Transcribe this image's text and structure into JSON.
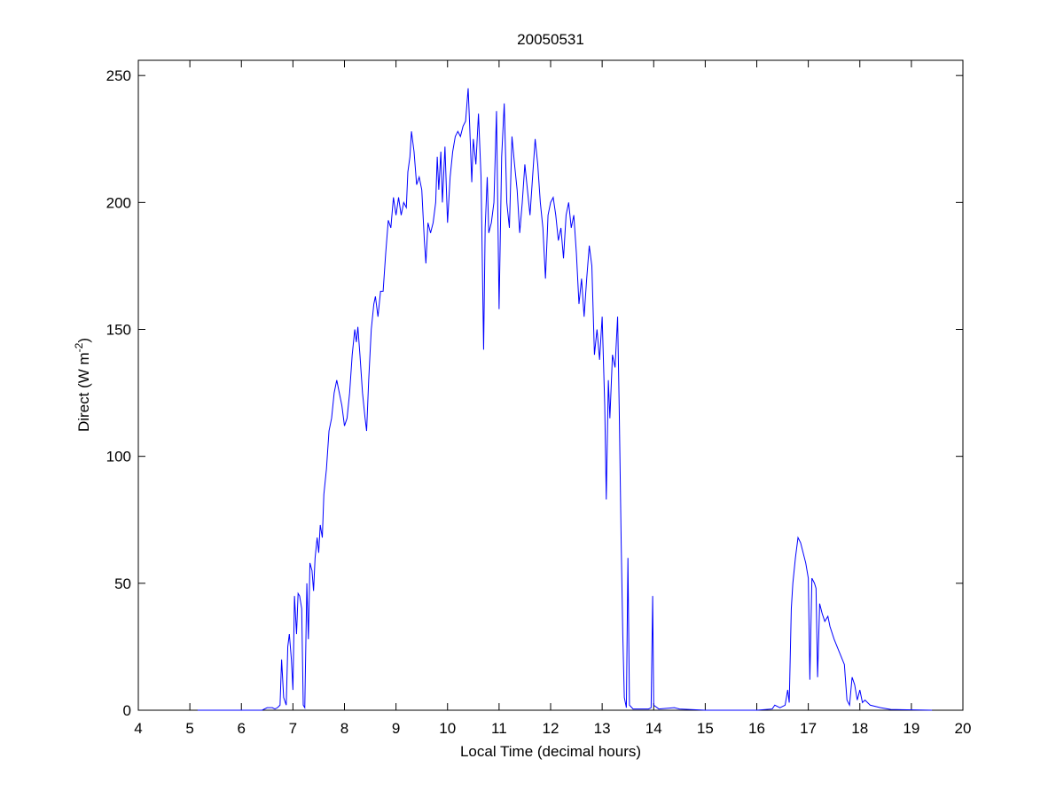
{
  "chart_data": {
    "type": "line",
    "title": "20050531",
    "x_label": "Local Time (decimal hours)",
    "y_label_parts": [
      "Direct (W m",
      "-2",
      ")"
    ],
    "xlim": [
      4,
      20
    ],
    "ylim": [
      0,
      256
    ],
    "xticks": [
      4,
      5,
      6,
      7,
      8,
      9,
      10,
      11,
      12,
      13,
      14,
      15,
      16,
      17,
      18,
      19,
      20
    ],
    "yticks": [
      0,
      50,
      100,
      150,
      200,
      250
    ],
    "grid": false,
    "series": [
      {
        "color": "#0000ff",
        "x": [
          5.15,
          6.0,
          6.4,
          6.5,
          6.6,
          6.65,
          6.7,
          6.75,
          6.78,
          6.82,
          6.87,
          6.9,
          6.93,
          6.97,
          7.0,
          7.03,
          7.07,
          7.1,
          7.13,
          7.17,
          7.2,
          7.23,
          7.27,
          7.3,
          7.33,
          7.37,
          7.4,
          7.43,
          7.47,
          7.5,
          7.53,
          7.57,
          7.6,
          7.65,
          7.7,
          7.75,
          7.8,
          7.85,
          7.9,
          7.95,
          8.0,
          8.05,
          8.1,
          8.15,
          8.2,
          8.23,
          8.26,
          8.3,
          8.35,
          8.4,
          8.43,
          8.47,
          8.52,
          8.57,
          8.6,
          8.65,
          8.7,
          8.75,
          8.8,
          8.85,
          8.9,
          8.95,
          9.0,
          9.05,
          9.1,
          9.15,
          9.2,
          9.23,
          9.27,
          9.3,
          9.35,
          9.4,
          9.45,
          9.5,
          9.55,
          9.58,
          9.62,
          9.67,
          9.72,
          9.77,
          9.8,
          9.83,
          9.87,
          9.9,
          9.95,
          10.0,
          10.05,
          10.1,
          10.15,
          10.2,
          10.25,
          10.3,
          10.35,
          10.4,
          10.43,
          10.47,
          10.5,
          10.55,
          10.6,
          10.65,
          10.7,
          10.73,
          10.77,
          10.8,
          10.85,
          10.9,
          10.95,
          11.0,
          11.05,
          11.1,
          11.15,
          11.2,
          11.25,
          11.3,
          11.35,
          11.4,
          11.45,
          11.5,
          11.55,
          11.6,
          11.65,
          11.7,
          11.75,
          11.8,
          11.85,
          11.9,
          11.95,
          12.0,
          12.05,
          12.1,
          12.15,
          12.2,
          12.25,
          12.3,
          12.35,
          12.4,
          12.45,
          12.5,
          12.55,
          12.6,
          12.65,
          12.7,
          12.75,
          12.8,
          12.85,
          12.9,
          12.95,
          13.0,
          13.05,
          13.08,
          13.12,
          13.15,
          13.2,
          13.25,
          13.3,
          13.33,
          13.37,
          13.4,
          13.43,
          13.47,
          13.5,
          13.53,
          13.6,
          13.9,
          13.95,
          13.98,
          14.0,
          14.1,
          14.4,
          14.5,
          15.0,
          16.0,
          16.3,
          16.35,
          16.45,
          16.55,
          16.6,
          16.63,
          16.67,
          16.7,
          16.75,
          16.8,
          16.85,
          16.9,
          16.95,
          17.0,
          17.03,
          17.07,
          17.12,
          17.15,
          17.18,
          17.22,
          17.27,
          17.32,
          17.38,
          17.42,
          17.5,
          17.6,
          17.7,
          17.75,
          17.8,
          17.85,
          17.9,
          17.95,
          18.0,
          18.05,
          18.1,
          18.2,
          18.4,
          18.6,
          19.4
        ],
        "values": [
          0,
          0,
          0,
          1,
          1,
          0.5,
          1,
          2,
          20,
          5,
          2,
          25,
          30,
          20,
          8,
          45,
          30,
          46,
          45,
          40,
          2,
          1,
          50,
          28,
          58,
          55,
          47,
          60,
          68,
          62,
          73,
          68,
          85,
          95,
          110,
          115,
          125,
          130,
          125,
          120,
          112,
          115,
          125,
          140,
          150,
          145,
          151,
          140,
          125,
          115,
          110,
          130,
          150,
          160,
          163,
          155,
          165,
          165,
          180,
          193,
          190,
          202,
          195,
          202,
          195,
          200,
          198,
          212,
          218,
          228,
          220,
          207,
          210,
          205,
          185,
          176,
          192,
          188,
          192,
          200,
          218,
          205,
          220,
          200,
          222,
          192,
          210,
          220,
          226,
          228,
          226,
          230,
          232,
          245,
          230,
          208,
          225,
          215,
          235,
          210,
          142,
          190,
          210,
          188,
          192,
          200,
          236,
          158,
          218,
          239,
          200,
          190,
          226,
          215,
          205,
          188,
          200,
          215,
          205,
          195,
          210,
          225,
          215,
          200,
          190,
          170,
          195,
          200,
          202,
          195,
          185,
          190,
          178,
          195,
          200,
          190,
          195,
          180,
          160,
          170,
          155,
          170,
          183,
          175,
          140,
          150,
          138,
          155,
          120,
          83,
          130,
          115,
          140,
          135,
          155,
          120,
          65,
          30,
          5,
          1,
          60,
          2,
          0.5,
          0.5,
          1,
          45,
          2,
          0.5,
          1,
          0.5,
          0,
          0,
          0.5,
          2,
          1,
          2,
          8,
          3,
          40,
          50,
          60,
          68,
          66,
          62,
          58,
          52,
          12,
          52,
          50,
          48,
          13,
          42,
          38,
          35,
          37,
          33,
          28,
          23,
          18,
          4,
          2,
          13,
          10,
          4,
          8,
          3,
          4,
          2,
          1,
          0.3,
          0
        ]
      }
    ]
  }
}
